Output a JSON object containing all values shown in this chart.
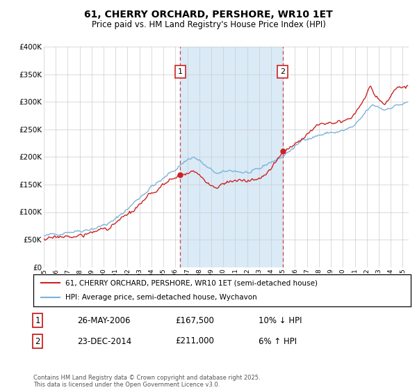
{
  "title": "61, CHERRY ORCHARD, PERSHORE, WR10 1ET",
  "subtitle": "Price paid vs. HM Land Registry's House Price Index (HPI)",
  "ylim": [
    0,
    400000
  ],
  "yticks": [
    0,
    50000,
    100000,
    150000,
    200000,
    250000,
    300000,
    350000,
    400000
  ],
  "ytick_labels": [
    "£0",
    "£50K",
    "£100K",
    "£150K",
    "£200K",
    "£250K",
    "£300K",
    "£350K",
    "£400K"
  ],
  "hpi_color": "#7ab4d8",
  "price_color": "#cc2222",
  "vline_color": "#cc2222",
  "shade_color": "#daeaf7",
  "plot_bg_color": "#ffffff",
  "grid_color": "#cccccc",
  "marker1_price": 167500,
  "marker2_price": 211000,
  "legend_line1": "61, CHERRY ORCHARD, PERSHORE, WR10 1ET (semi-detached house)",
  "legend_line2": "HPI: Average price, semi-detached house, Wychavon",
  "footer": "Contains HM Land Registry data © Crown copyright and database right 2025.\nThis data is licensed under the Open Government Licence v3.0.",
  "table_row1": [
    "1",
    "26-MAY-2006",
    "£167,500",
    "10% ↓ HPI"
  ],
  "table_row2": [
    "2",
    "23-DEC-2014",
    "£211,000",
    "6% ↑ HPI"
  ]
}
